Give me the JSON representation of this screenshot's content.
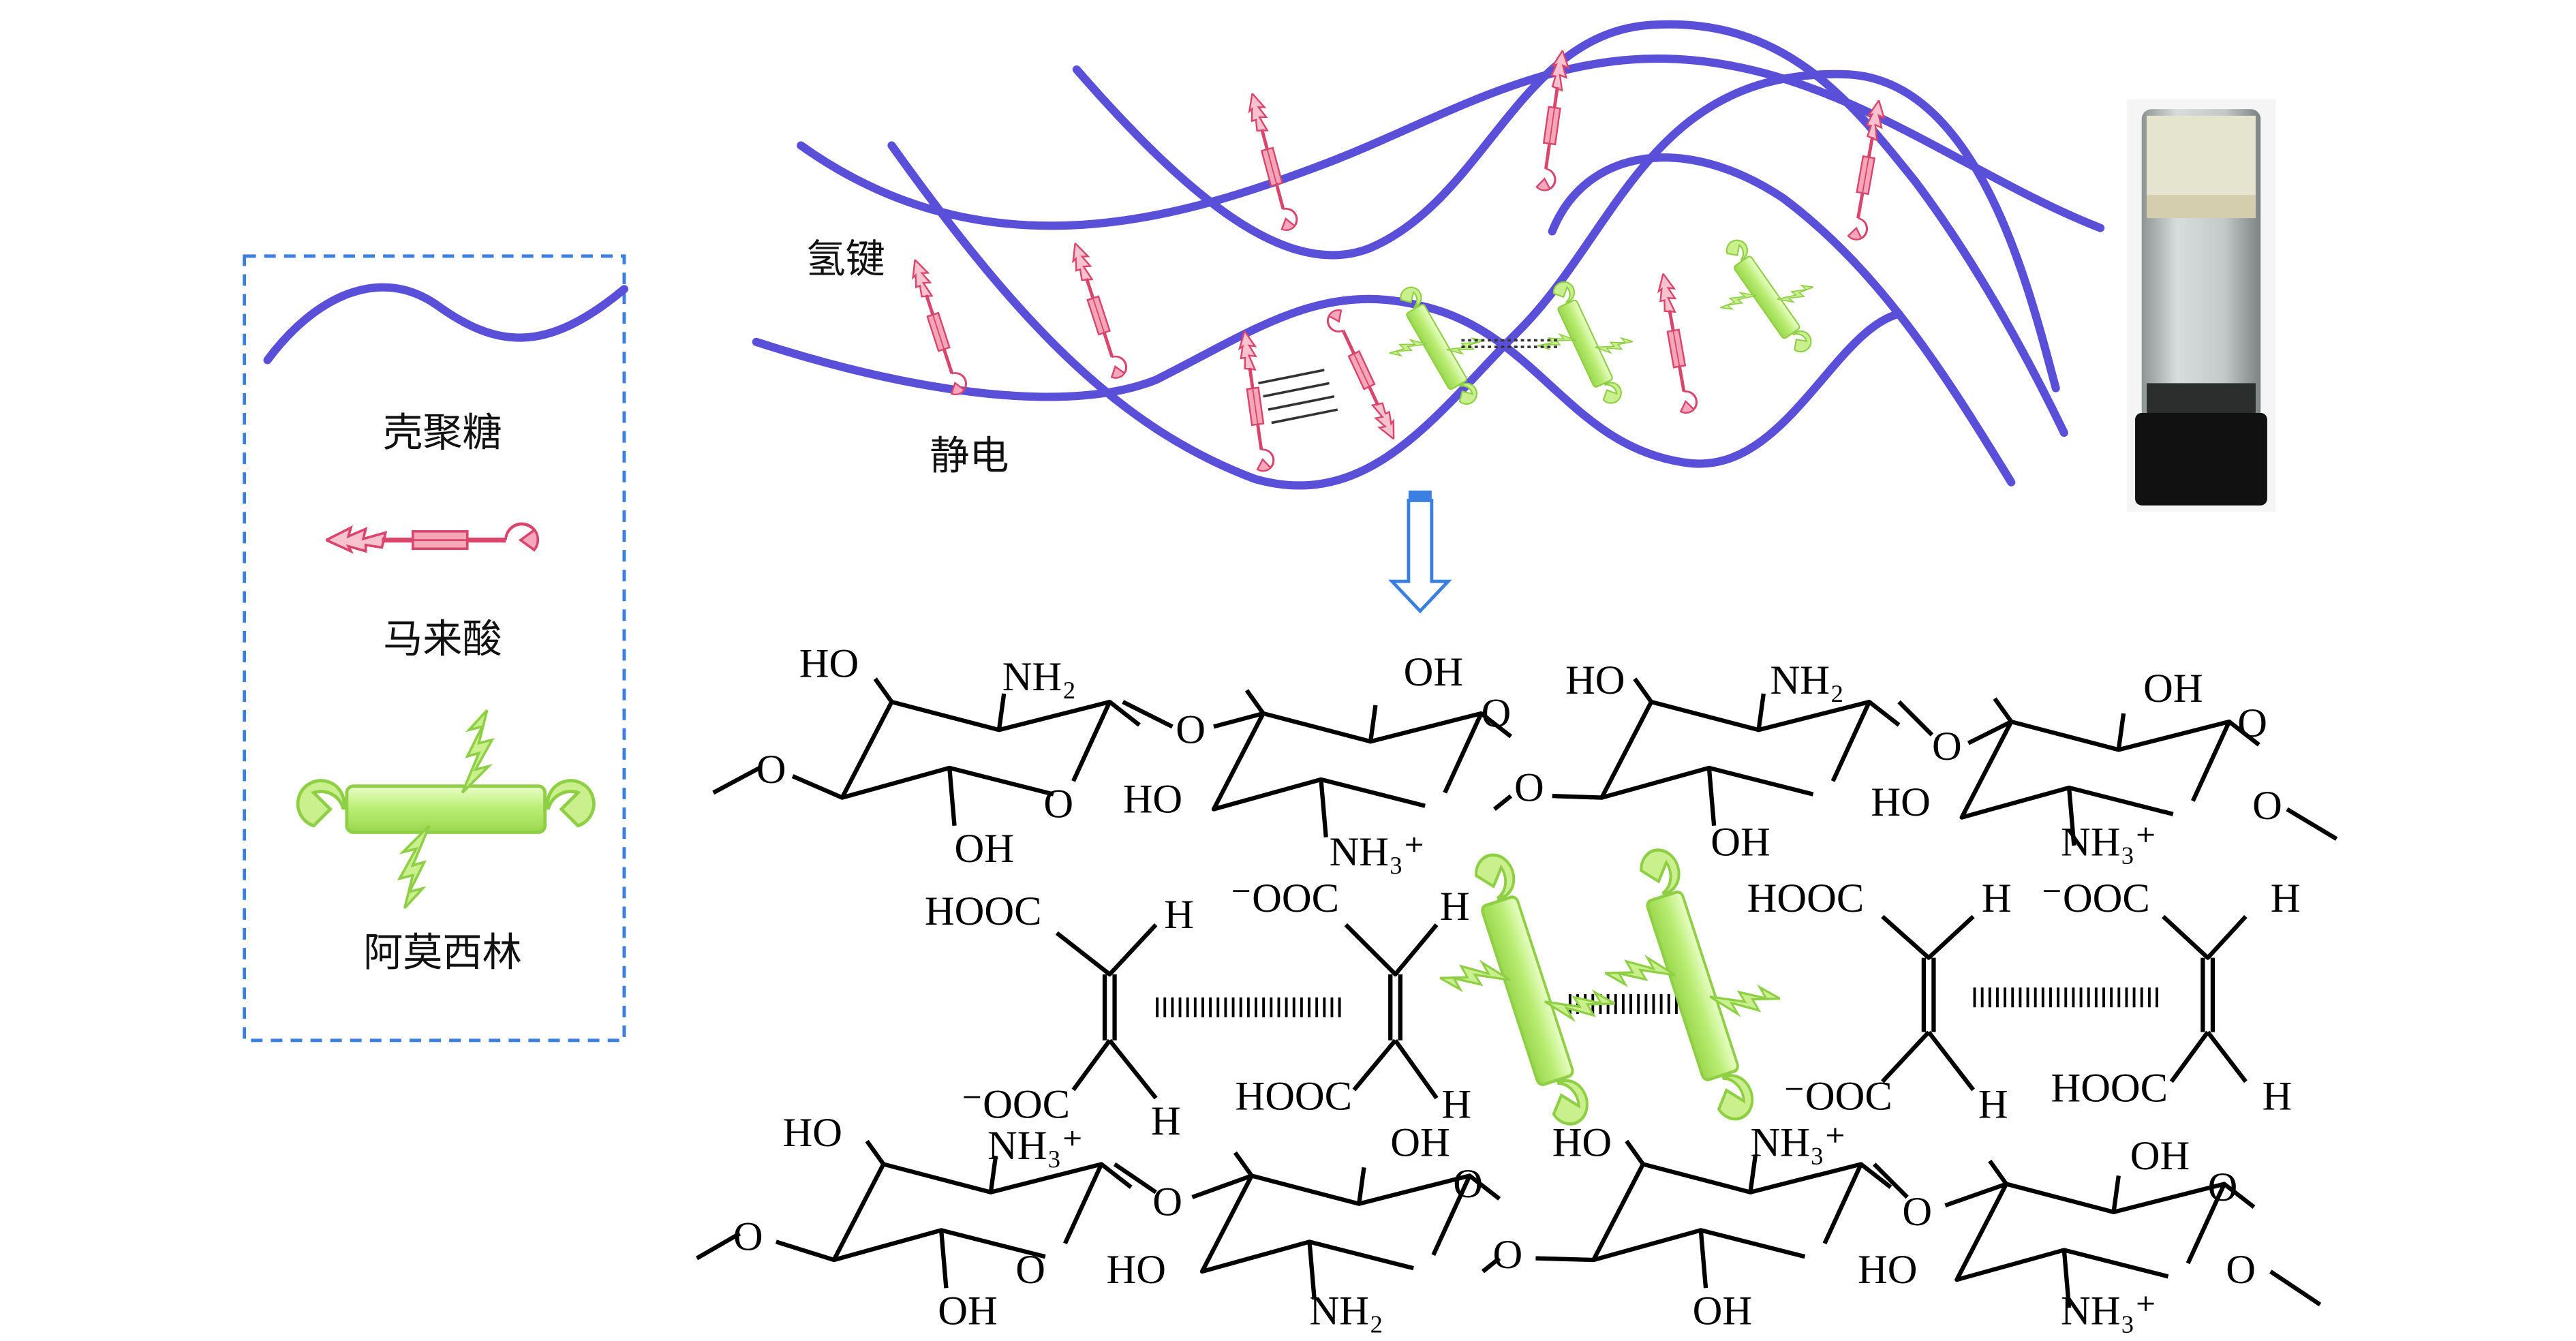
{
  "legend": {
    "chitosan_label": "壳聚糖",
    "maleic_acid_label": "马来酸",
    "amoxicillin_label": "阿莫西林"
  },
  "annotations": {
    "hydrogen_bond": "氢键",
    "electrostatic": "静电"
  },
  "chem": {
    "labels": [
      "HO",
      "NH₂",
      "O",
      "OH",
      "O",
      "HO",
      "O",
      "O",
      "OH",
      "NH₃⁺",
      "O",
      "HO",
      "NH₂",
      "O",
      "OH",
      "O",
      "HO",
      "NH₃⁺",
      "O",
      "OH",
      "HOOC",
      "H",
      "⁻OOC",
      "H",
      "HOOC",
      "H",
      "⁻OOC",
      "H",
      "⁻OOC",
      "H",
      "HOOC",
      "H",
      "⁻OOC",
      "H",
      "HOOC",
      "H",
      "HO",
      "NH₃⁺",
      "O",
      "OH",
      "O",
      "HO",
      "O",
      "O",
      "OH",
      "NH₂",
      "O",
      "HO",
      "NH₃⁺",
      "O",
      "OH",
      "O",
      "HO",
      "NH₃⁺",
      "O",
      "OH"
    ]
  },
  "colors": {
    "chitosan": "#5a4fd8",
    "maleic_acid": "#d9456b",
    "amoxicillin": "#a8e060",
    "legend_border": "#3b7fe0",
    "arrow": "#3b7fe0"
  }
}
